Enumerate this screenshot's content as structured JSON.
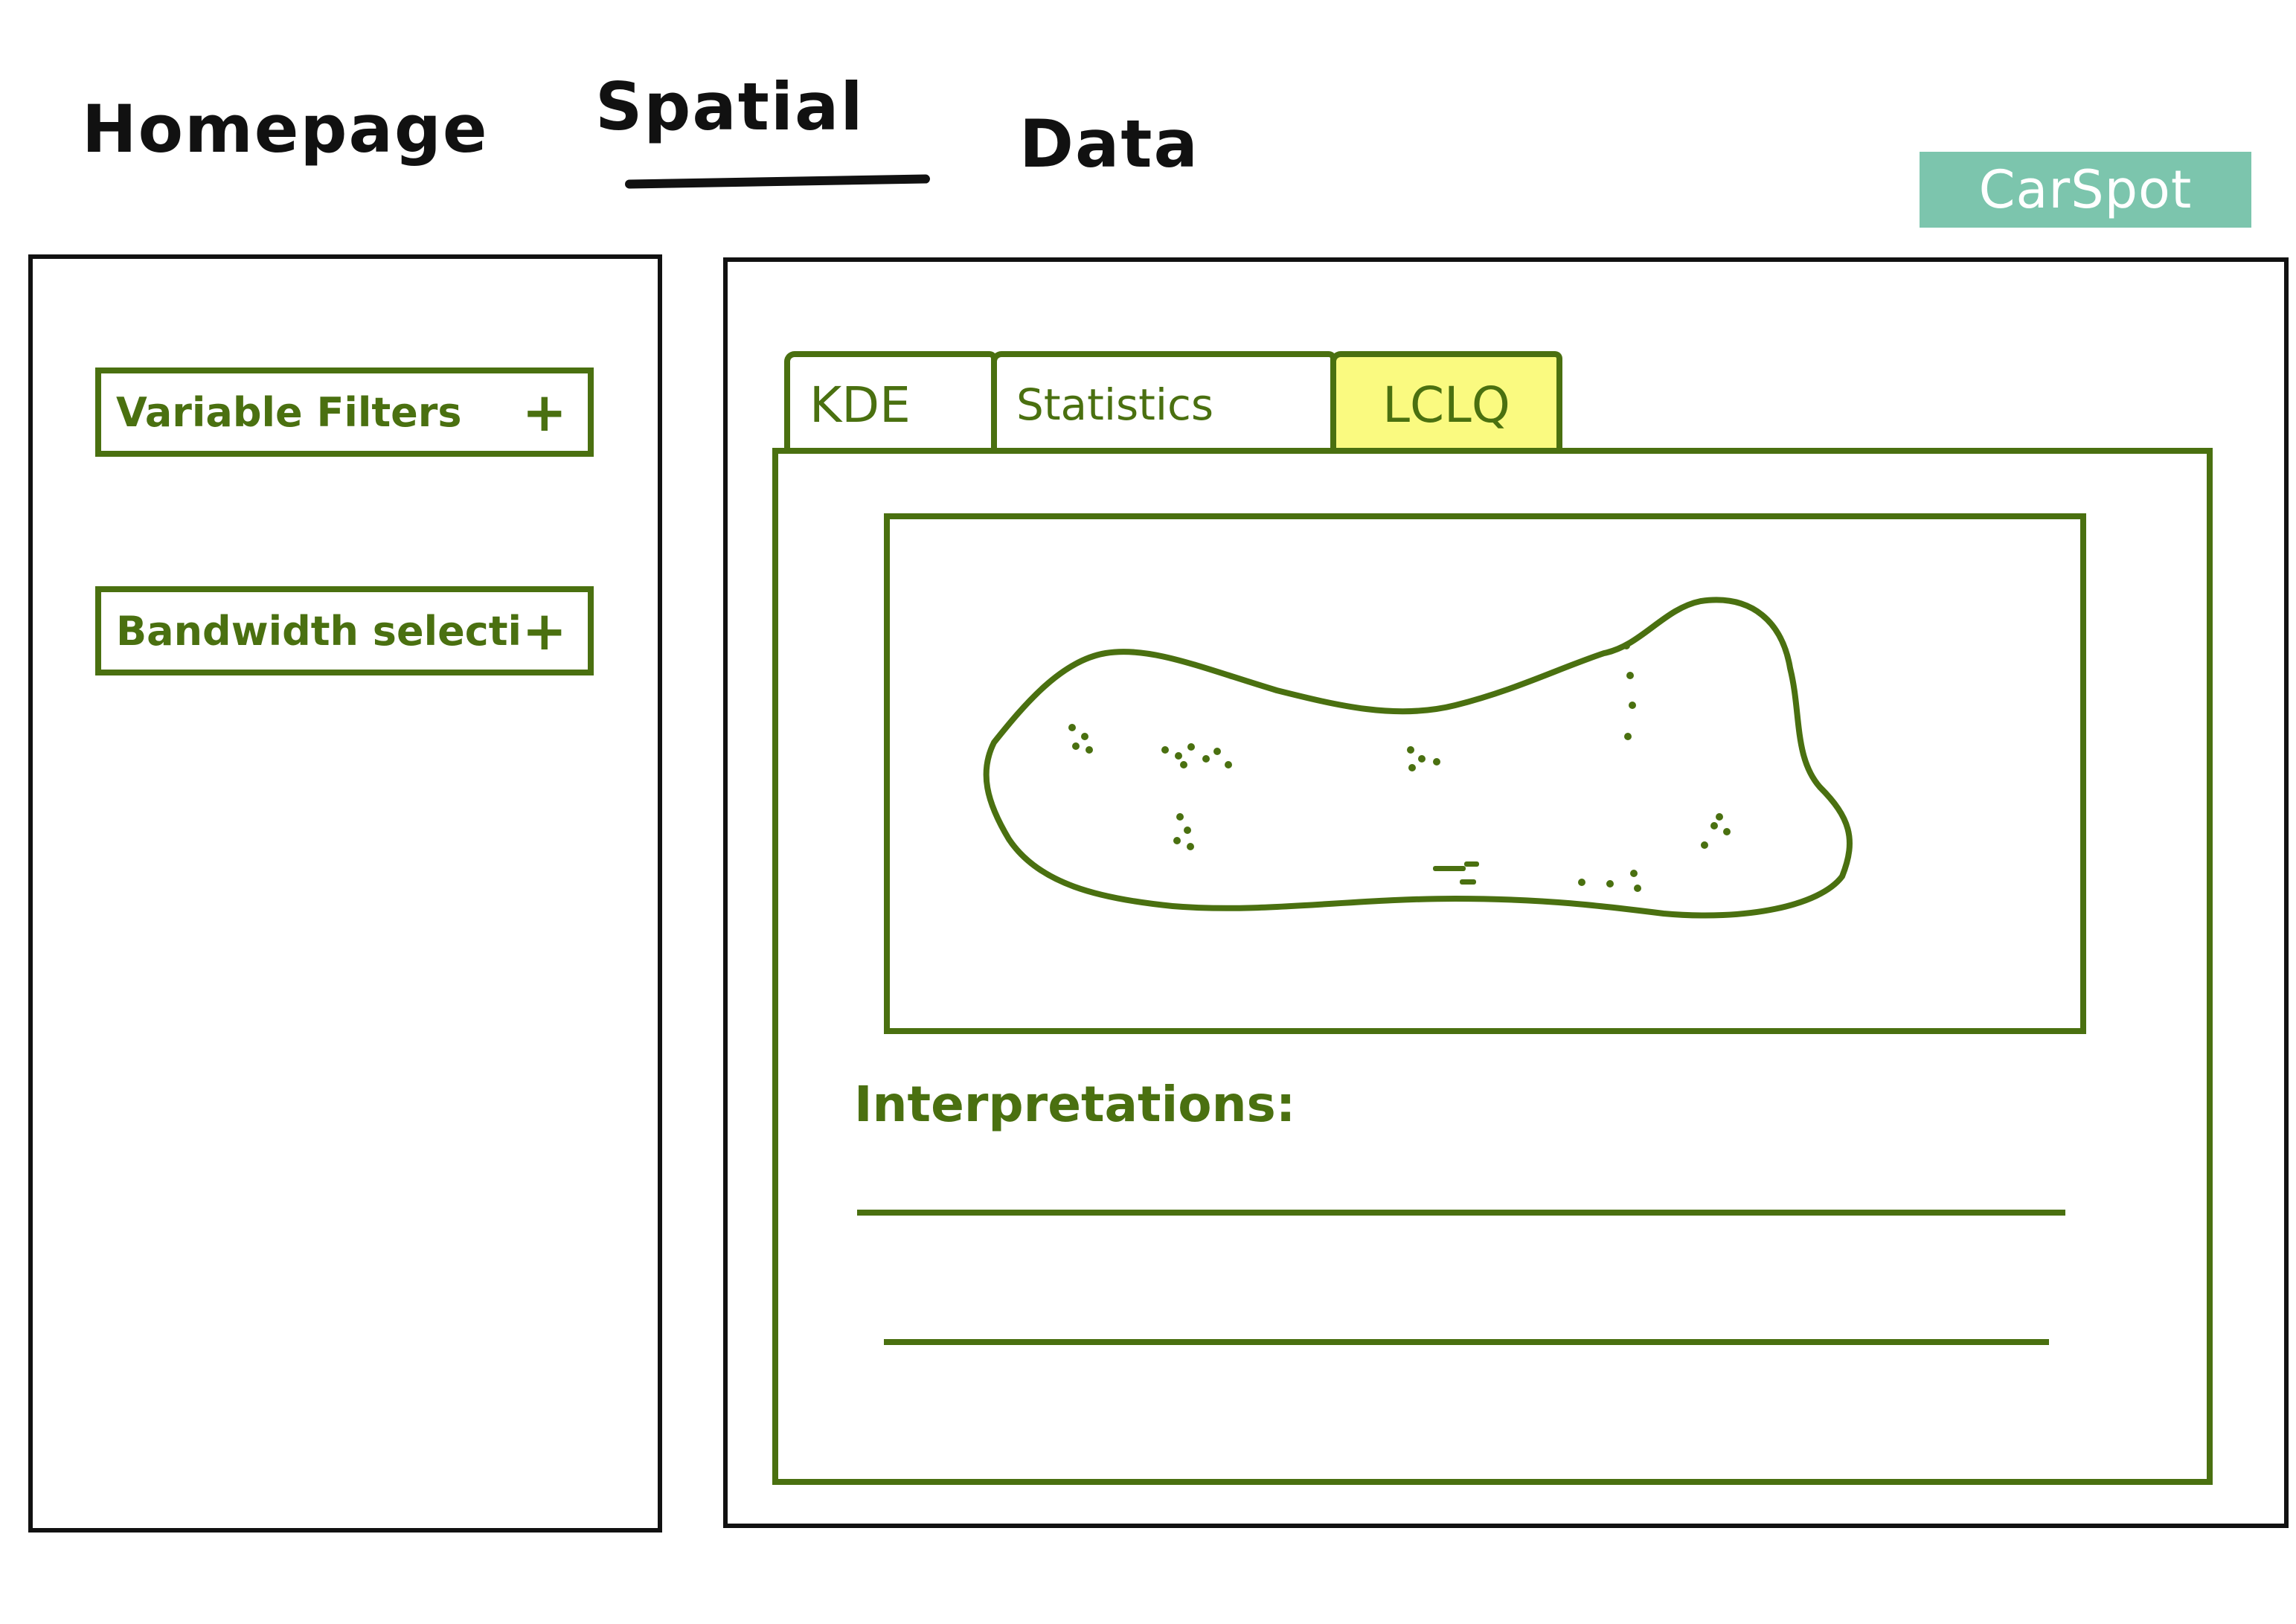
{
  "nav": {
    "homepage": "Homepage",
    "spatial": "Spatial",
    "data": "Data"
  },
  "logo": {
    "text": "CarSpot",
    "color": "#7cc5ad"
  },
  "sidebar": {
    "filters_label": "Variable Filters",
    "bandwidth_label": "Bandwidth selection",
    "add_symbol": "+"
  },
  "tabs": [
    {
      "label": "KDE",
      "active": false
    },
    {
      "label": "Statistics",
      "active": false
    },
    {
      "label": "LCLQ",
      "active": true
    }
  ],
  "content": {
    "interpretation_label": "Interpretations:"
  },
  "colors": {
    "accent": "#4a7010",
    "active_tab": "#fafa80",
    "frame": "#111111"
  }
}
